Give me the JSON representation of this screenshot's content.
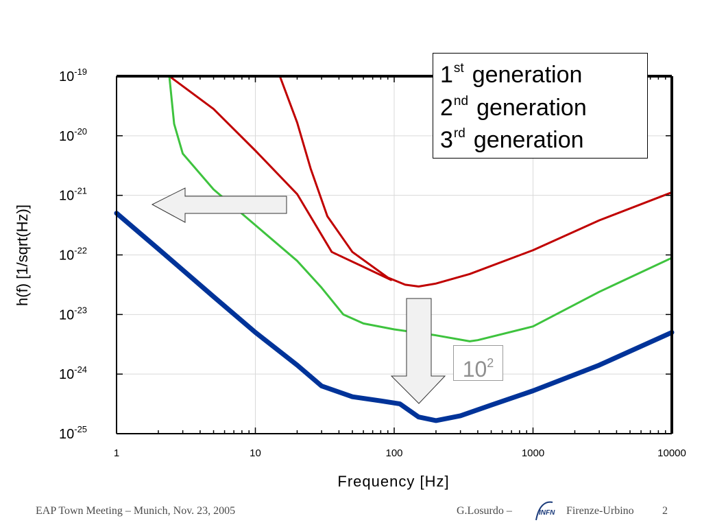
{
  "chart_data": {
    "type": "line",
    "title": "",
    "xlabel": "Frequency [Hz]",
    "ylabel": "h(f) [1/sqrt(Hz)]",
    "xscale": "log",
    "yscale": "log",
    "xlim": [
      1,
      10000
    ],
    "ylim_exponents": [
      -25,
      -19
    ],
    "x_ticks": [
      "1",
      "10",
      "100",
      "1000",
      "10000"
    ],
    "x_tick_values": [
      1,
      10,
      100,
      1000,
      10000
    ],
    "y_tick_exponents": [
      -19,
      -20,
      -21,
      -22,
      -23,
      -24,
      -25
    ],
    "y_tick_base": "10",
    "grid": true,
    "legend_position": "top-right",
    "series": [
      {
        "name": "1st generation",
        "legend_num": "1",
        "legend_sup": "st",
        "legend_text": "generation",
        "color": "#c00000",
        "segments": [
          [
            [
              2.4,
              -19.0
            ],
            [
              5,
              -19.55
            ],
            [
              10,
              -20.25
            ],
            [
              20,
              -20.98
            ],
            [
              35.5,
              -21.95
            ],
            [
              60,
              -22.2
            ],
            [
              95,
              -22.42
            ]
          ],
          [
            [
              15,
              -19.0
            ],
            [
              20,
              -19.78
            ],
            [
              25,
              -20.55
            ],
            [
              33,
              -21.35
            ],
            [
              50,
              -21.95
            ],
            [
              90,
              -22.38
            ],
            [
              120,
              -22.5
            ],
            [
              150,
              -22.53
            ],
            [
              200,
              -22.48
            ],
            [
              350,
              -22.32
            ],
            [
              1000,
              -21.92
            ],
            [
              3000,
              -21.42
            ],
            [
              10000,
              -20.95
            ]
          ]
        ]
      },
      {
        "name": "2nd generation",
        "legend_num": "2",
        "legend_sup": "nd",
        "legend_text": "generation",
        "color": "#3ec33e",
        "segments": [
          [
            [
              2.4,
              -19.0
            ],
            [
              2.6,
              -19.8
            ],
            [
              3,
              -20.3
            ],
            [
              5,
              -20.9
            ],
            [
              10,
              -21.5
            ],
            [
              20,
              -22.1
            ],
            [
              30,
              -22.55
            ],
            [
              43,
              -23.0
            ],
            [
              60,
              -23.15
            ],
            [
              100,
              -23.25
            ],
            [
              200,
              -23.35
            ],
            [
              350,
              -23.45
            ],
            [
              400,
              -23.43
            ],
            [
              1000,
              -23.2
            ],
            [
              3000,
              -22.62
            ],
            [
              10000,
              -22.05
            ]
          ]
        ]
      },
      {
        "name": "3rd generation",
        "legend_num": "3",
        "legend_sup": "rd",
        "legend_text": "generation",
        "color": "#003399",
        "segments": [
          [
            [
              1,
              -21.3
            ],
            [
              2,
              -21.9
            ],
            [
              5,
              -22.7
            ],
            [
              10,
              -23.3
            ],
            [
              20,
              -23.85
            ],
            [
              30,
              -24.2
            ],
            [
              50,
              -24.38
            ],
            [
              80,
              -24.45
            ],
            [
              110,
              -24.5
            ],
            [
              150,
              -24.72
            ],
            [
              200,
              -24.78
            ],
            [
              300,
              -24.7
            ],
            [
              500,
              -24.52
            ],
            [
              1000,
              -24.28
            ],
            [
              3000,
              -23.85
            ],
            [
              10000,
              -23.3
            ]
          ]
        ]
      }
    ],
    "annotations": [
      {
        "kind": "arrow-left",
        "text": ""
      },
      {
        "kind": "arrow-down",
        "text": ""
      },
      {
        "kind": "label-box",
        "base": "10",
        "sup": "2"
      }
    ]
  },
  "footer": {
    "left": "EAP Town Meeting – Munich, Nov. 23, 2005",
    "author": "G.Losurdo –",
    "logo_text": "INFN",
    "affiliation": "Firenze-Urbino",
    "page": "2"
  }
}
